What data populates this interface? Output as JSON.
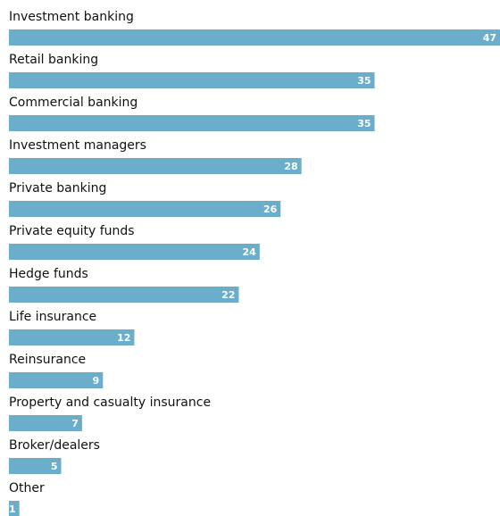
{
  "chart_data": {
    "type": "bar",
    "orientation": "horizontal",
    "categories": [
      "Investment banking",
      "Retail banking",
      "Commercial banking",
      "Investment managers",
      "Private banking",
      "Private equity funds",
      "Hedge funds",
      "Life insurance",
      "Reinsurance",
      "Property and casualty insurance",
      "Broker/dealers",
      "Other"
    ],
    "values": [
      47,
      35,
      35,
      28,
      26,
      24,
      22,
      12,
      9,
      7,
      5,
      1
    ],
    "xlim": [
      0,
      47
    ],
    "bar_color": "#6aaecb",
    "data_labels": "inside-end",
    "grid": false,
    "legend": "none"
  }
}
